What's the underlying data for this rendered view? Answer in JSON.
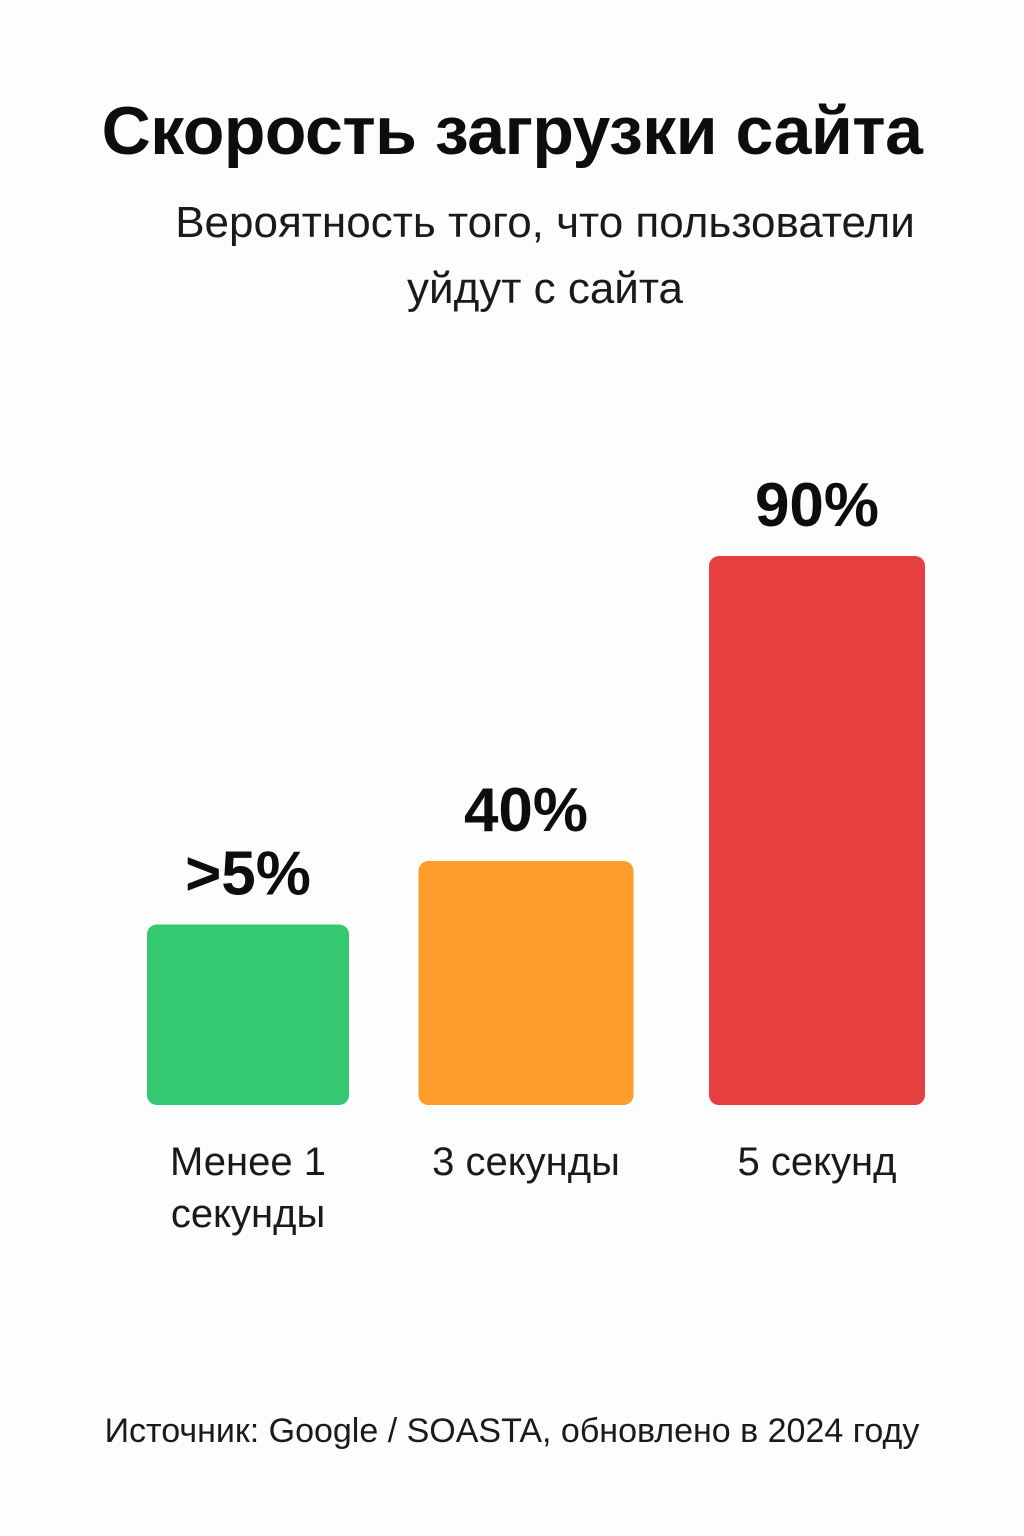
{
  "header": {
    "title": "Скорость загрузки сайта",
    "subtitle": "Вероятность того, что пользователи уйдут с сайта"
  },
  "chart_data": {
    "type": "bar",
    "title": "Скорость загрузки сайта",
    "subtitle": "Вероятность того, что пользователи уйдут с сайта",
    "categories": [
      [
        "Менее 1",
        "секунды"
      ],
      [
        "3 секунды"
      ],
      [
        "5 секунд"
      ]
    ],
    "values": [
      5,
      40,
      90
    ],
    "value_labels": [
      ">5%",
      "40%",
      "90%"
    ],
    "colors": [
      "#34c871",
      "#fd9d2b",
      "#e53f3f"
    ],
    "ylim": [
      0,
      100
    ],
    "grid": false,
    "legend": "none"
  },
  "footer": {
    "source": "Источник: Google / SOASTA, обновлено в 2024 году"
  }
}
